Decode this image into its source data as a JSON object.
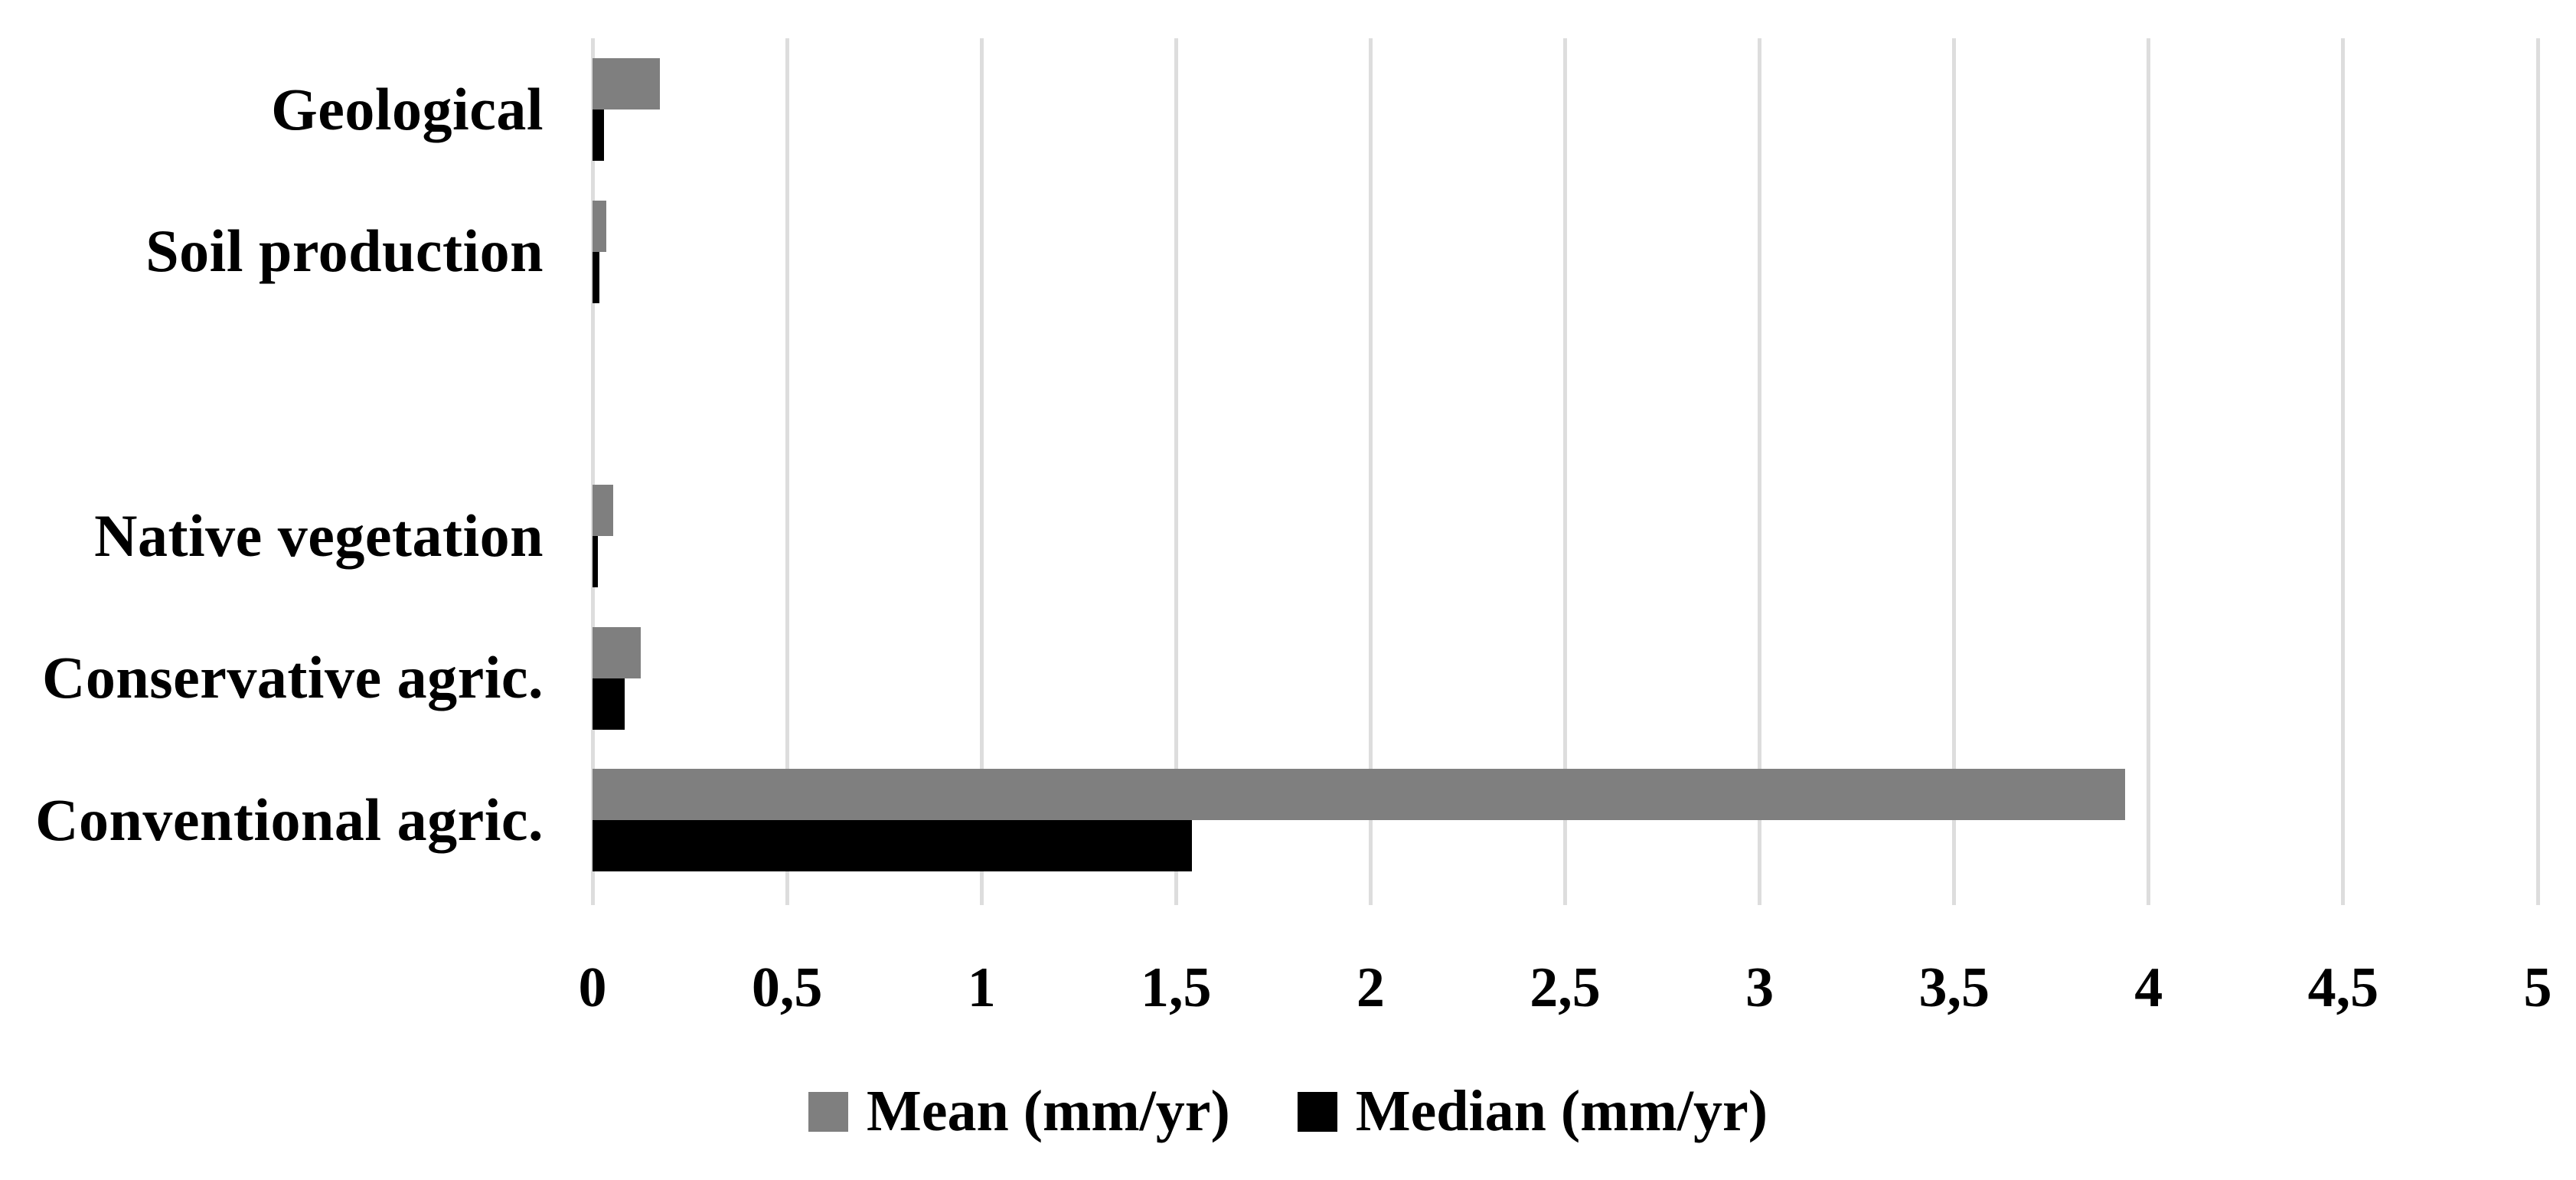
{
  "chart_data": {
    "type": "bar",
    "orientation": "horizontal",
    "title": "",
    "xlabel": "",
    "ylabel": "",
    "categories": [
      "Geological",
      "Soil production",
      "",
      "Native vegetation",
      "Conservative agric.",
      "Conventional agric."
    ],
    "series": [
      {
        "name": "Mean (mm/yr)",
        "color": "#7f7f7f",
        "values": [
          0.173,
          0.036,
          null,
          0.053,
          0.124,
          3.94
        ]
      },
      {
        "name": "Median (mm/yr)",
        "color": "#000000",
        "values": [
          0.029,
          0.017,
          null,
          0.013,
          0.082,
          1.54
        ]
      }
    ],
    "xlim": [
      0,
      5
    ],
    "x_ticks": [
      0,
      0.5,
      1,
      1.5,
      2,
      2.5,
      3,
      3.5,
      4,
      4.5,
      5
    ],
    "x_tick_labels": [
      "0",
      "0,5",
      "1",
      "1,5",
      "2",
      "2,5",
      "3",
      "3,5",
      "4",
      "4,5",
      "5"
    ],
    "grid": "vertical-on",
    "gridline_color": "#dddddd",
    "legend_position": "bottom",
    "background_color": "#ffffff"
  }
}
